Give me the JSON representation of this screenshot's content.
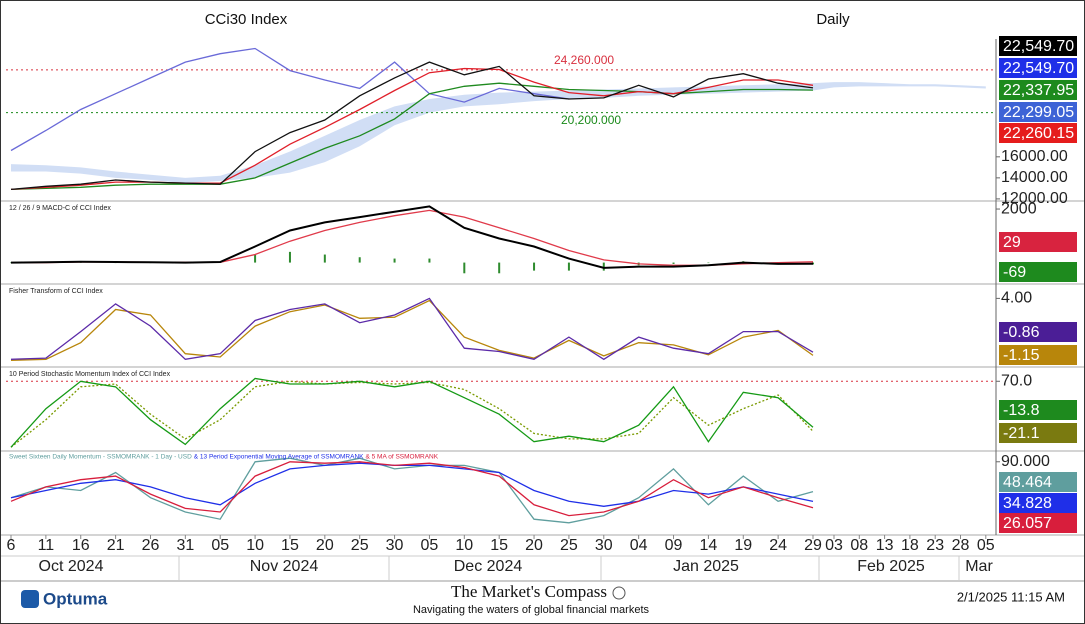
{
  "chart_data": [
    {
      "type": "line",
      "title": "CCi30 Index",
      "subtitle": "Daily",
      "ylim": [
        11800,
        27200
      ],
      "yticks": [
        {
          "value": 12000,
          "label": "12000.00"
        },
        {
          "value": 14000,
          "label": "14000.00"
        },
        {
          "value": 16000,
          "label": "16000.00"
        }
      ],
      "cloud": {
        "color": "#c9d8f3",
        "upper": [
          15300,
          15200,
          15000,
          14600,
          14300,
          14000,
          14200,
          15200,
          16500,
          18000,
          19500,
          20800,
          21500,
          21900,
          22100,
          22200,
          22300,
          22400,
          22500,
          22600,
          22700,
          22800,
          22900,
          23000,
          23100,
          23100,
          23000,
          22900,
          22900,
          22800,
          22700
        ],
        "lower": [
          14600,
          14600,
          14400,
          14000,
          13800,
          13500,
          13700,
          14000,
          14500,
          15500,
          17000,
          19000,
          20200,
          20800,
          21000,
          21300,
          21500,
          21600,
          21800,
          21900,
          22000,
          22100,
          22200,
          22300,
          22600,
          22700,
          22700,
          22700,
          22700,
          22600,
          22500
        ]
      },
      "series": [
        {
          "color": "#6a6ad8",
          "values": [
            16600,
            18500,
            20500,
            22000,
            23500,
            25000,
            25800,
            26300,
            24200,
            23300,
            22500,
            25000,
            22000,
            21200,
            22500,
            22000,
            21500,
            null,
            null,
            null,
            null,
            null,
            null,
            null,
            null,
            null,
            null,
            null,
            null,
            null,
            null
          ]
        },
        {
          "color": "#1f8a1f",
          "values": [
            12900,
            13000,
            13100,
            13300,
            13400,
            13400,
            13400,
            14000,
            15400,
            16800,
            18000,
            19600,
            22000,
            22700,
            23000,
            22700,
            22400,
            22300,
            22200,
            22000,
            22200,
            22400,
            22400,
            22338,
            null,
            null,
            null,
            null,
            null,
            null,
            null
          ]
        },
        {
          "color": "#e0202a",
          "values": [
            12900,
            13100,
            13300,
            13600,
            13600,
            13500,
            13500,
            15200,
            17200,
            18800,
            20500,
            22300,
            24000,
            24400,
            24300,
            23100,
            22100,
            21800,
            22200,
            22000,
            22600,
            23300,
            23300,
            22800,
            null,
            null,
            null,
            null,
            null,
            null,
            null
          ]
        },
        {
          "color": "#111111",
          "values": [
            12900,
            13200,
            13400,
            13800,
            13600,
            13500,
            13400,
            16500,
            18300,
            19500,
            21800,
            23500,
            25000,
            23800,
            24600,
            21800,
            21500,
            21600,
            22800,
            21700,
            23400,
            23900,
            23000,
            22550,
            null,
            null,
            null,
            null,
            null,
            null,
            null
          ]
        }
      ],
      "levels": [
        {
          "value": 24260,
          "label": "24,260.000",
          "color": "#d8303f"
        },
        {
          "value": 20200,
          "label": "20,200.000",
          "color": "#1a8a1a"
        }
      ],
      "tags": [
        {
          "value": 22549.7,
          "label": "22,549.70",
          "color": "#000000"
        },
        {
          "value": 22549.7,
          "label": "22,549.70",
          "color": "#1f2fe8"
        },
        {
          "value": 22337.95,
          "label": "22,337.95",
          "color": "#1d8a1d"
        },
        {
          "value": 22299.05,
          "label": "22,299.05",
          "color": "#3d63d6"
        },
        {
          "value": 22260.15,
          "label": "22,260.15",
          "color": "#e51d1d"
        }
      ]
    },
    {
      "type": "line",
      "title": "12 / 26 / 9 MACD-C of CCI Index",
      "ylim": [
        -800,
        2300
      ],
      "yticks": [
        2000
      ],
      "series": [
        {
          "color": "#2e8b2e",
          "style": "bars",
          "values": [
            0,
            10,
            10,
            0,
            -5,
            -10,
            10,
            300,
            400,
            300,
            200,
            150,
            150,
            -400,
            -400,
            -300,
            -300,
            -300,
            -100,
            -50,
            0,
            50,
            -50,
            -69,
            null,
            null,
            null,
            null,
            null,
            null,
            null
          ]
        },
        {
          "color": "#e03a4a",
          "values": [
            0,
            0,
            20,
            20,
            15,
            10,
            10,
            300,
            800,
            1200,
            1500,
            1750,
            1950,
            1700,
            1300,
            900,
            450,
            100,
            -50,
            -100,
            -100,
            -50,
            0,
            29,
            null,
            null,
            null,
            null,
            null,
            null,
            null
          ]
        },
        {
          "color": "#000000",
          "width": 2,
          "values": [
            0,
            10,
            30,
            20,
            10,
            0,
            20,
            600,
            1200,
            1500,
            1700,
            1900,
            2100,
            1300,
            900,
            600,
            150,
            -200,
            -150,
            -150,
            -100,
            0,
            -50,
            -41,
            null,
            null,
            null,
            null,
            null,
            null,
            null
          ]
        }
      ],
      "tags": [
        {
          "value": 29,
          "label": "29",
          "color": "#d8233f"
        },
        {
          "value": -69,
          "label": "-69",
          "color": "#1e8a1e"
        }
      ]
    },
    {
      "type": "line",
      "title": "Fisher Transform of CCI Index",
      "ylim": [
        -2.2,
        5.3
      ],
      "yticks": [
        {
          "value": 4,
          "label": "4.00"
        }
      ],
      "series": [
        {
          "color": "#b8860b",
          "values": [
            -1.6,
            -1.5,
            0.0,
            3.0,
            2.5,
            -1.0,
            -1.3,
            1.5,
            2.8,
            3.4,
            2.2,
            2.3,
            3.8,
            0.5,
            -0.7,
            -1.4,
            0.2,
            -1.2,
            0.0,
            -0.2,
            -1.1,
            0.5,
            1.1,
            -1.15,
            null,
            null,
            null,
            null,
            null,
            null,
            null
          ]
        },
        {
          "color": "#5b2aa8",
          "values": [
            -1.5,
            -1.4,
            1.0,
            3.5,
            1.5,
            -1.5,
            -1.0,
            2.0,
            3.0,
            3.5,
            1.8,
            2.5,
            4.0,
            -0.5,
            -0.8,
            -1.5,
            0.5,
            -1.5,
            0.5,
            -0.5,
            -1.0,
            1.0,
            1.0,
            -0.86,
            null,
            null,
            null,
            null,
            null,
            null,
            null
          ]
        }
      ],
      "tags": [
        {
          "value": -0.86,
          "label": "-0.86",
          "color": "#4b1e96"
        },
        {
          "value": -1.15,
          "label": "-1.15",
          "color": "#b8860b"
        }
      ]
    },
    {
      "type": "line",
      "title": "10 Period Stochastic Momentum Index of CCI Index",
      "ylim": [
        -57,
        96
      ],
      "yticks": [
        {
          "value": 70,
          "label": "70.0"
        }
      ],
      "series": [
        {
          "color": "#7a9a00",
          "style": "dotted",
          "values": [
            -50,
            0,
            60,
            65,
            10,
            -35,
            0,
            60,
            70,
            65,
            68,
            65,
            68,
            55,
            20,
            -25,
            -35,
            -35,
            -25,
            40,
            -10,
            20,
            45,
            -21.1,
            null,
            null,
            null,
            null,
            null,
            null,
            null
          ]
        },
        {
          "color": "#159a15",
          "values": [
            -50,
            20,
            70,
            60,
            0,
            -45,
            20,
            75,
            65,
            65,
            70,
            60,
            70,
            40,
            10,
            -40,
            -30,
            -40,
            -10,
            60,
            -40,
            50,
            40,
            -13.8,
            null,
            null,
            null,
            null,
            null,
            null,
            null
          ]
        }
      ],
      "levels": [
        {
          "value": 70,
          "color": "#d8303f"
        }
      ],
      "tags": [
        {
          "value": -13.8,
          "label": "-13.8",
          "color": "#1e8a1e"
        },
        {
          "value": -21.1,
          "label": "-21.1",
          "color": "#7a7a10"
        }
      ]
    },
    {
      "type": "line",
      "ylim": [
        -12,
        105
      ],
      "yticks": [
        {
          "value": 90,
          "label": "90.000"
        }
      ],
      "series": [
        {
          "name": "Sweet Sixteen Daily Momentum - SSMOMRANK - 1 Day - USD",
          "color": "#5f9e9e",
          "values": [
            40,
            55,
            50,
            75,
            40,
            20,
            10,
            90,
            95,
            85,
            95,
            80,
            85,
            85,
            75,
            10,
            5,
            15,
            40,
            80,
            30,
            70,
            35,
            48.464,
            null,
            null,
            null,
            null,
            null,
            null,
            null
          ]
        },
        {
          "name": "& 13 Period Exponential Moving Average of SSMOMRANK",
          "color": "#1f2fe8",
          "values": [
            40,
            50,
            60,
            65,
            55,
            40,
            30,
            60,
            80,
            85,
            88,
            85,
            85,
            80,
            75,
            50,
            35,
            28,
            35,
            50,
            45,
            55,
            45,
            34.828,
            null,
            null,
            null,
            null,
            null,
            null,
            null
          ]
        },
        {
          "name": "& 5 MA of SSMOMRANK",
          "color": "#d81e3c",
          "values": [
            35,
            55,
            65,
            70,
            45,
            25,
            20,
            70,
            90,
            88,
            90,
            85,
            88,
            82,
            70,
            30,
            15,
            20,
            35,
            65,
            40,
            55,
            40,
            26.057,
            null,
            null,
            null,
            null,
            null,
            null,
            null
          ]
        }
      ],
      "tags": [
        {
          "value": 48.464,
          "label": "48.464",
          "color": "#5f9e9e"
        },
        {
          "value": 34.828,
          "label": "34.828",
          "color": "#1f2fe8"
        },
        {
          "value": 26.057,
          "label": "26.057",
          "color": "#d81e3c"
        }
      ],
      "categories": [
        "6",
        "11",
        "16",
        "21",
        "26",
        "31",
        "05",
        "10",
        "15",
        "20",
        "25",
        "30",
        "05",
        "10",
        "15",
        "20",
        "25",
        "30",
        "04",
        "09",
        "14",
        "19",
        "24",
        "29",
        "03",
        "08",
        "13",
        "18",
        "23",
        "28",
        "05"
      ],
      "months": [
        "Oct 2024",
        "Nov 2024",
        "Dec 2024",
        "Jan 2025",
        "Feb 2025",
        "Mar"
      ]
    }
  ],
  "footer": {
    "logo": "Optuma",
    "brand": "The Market's Compass",
    "tagline": "Navigating the waters of global financial markets",
    "timestamp": "2/1/2025 11:15 AM"
  }
}
